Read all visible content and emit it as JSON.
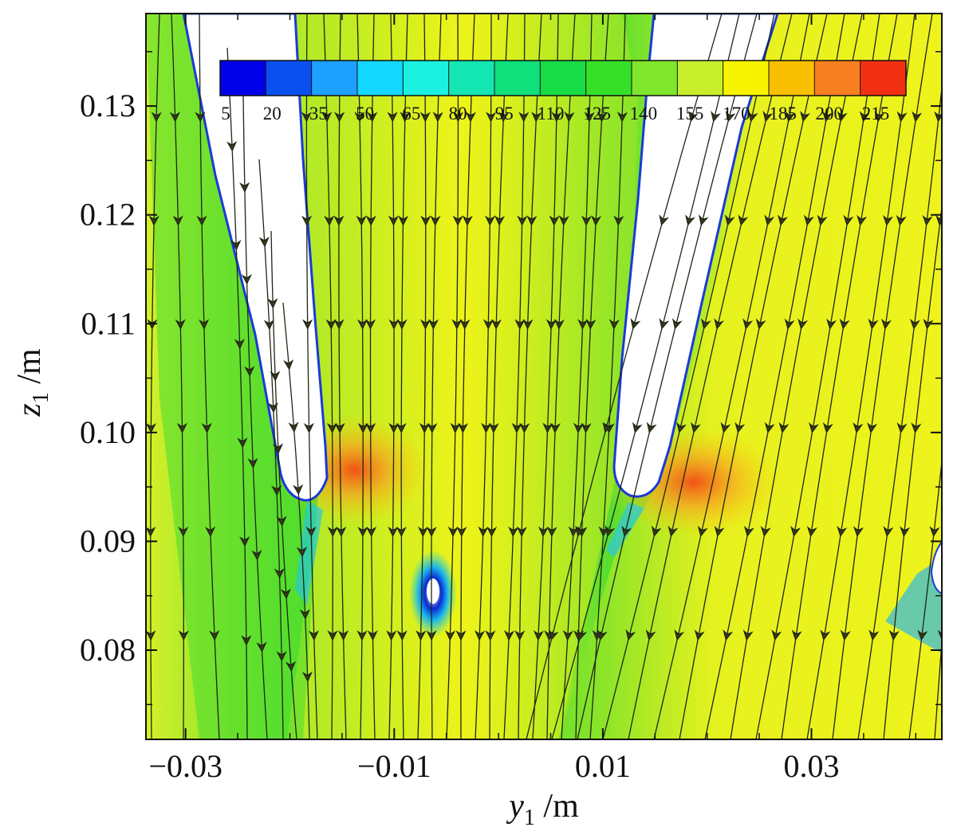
{
  "chart_data": {
    "type": "contour",
    "xlabel": {
      "symbol": "y",
      "sub": "1",
      "unit": " /m"
    },
    "ylabel": {
      "symbol": "z",
      "sub": "1",
      "unit": " /m"
    },
    "xlim": [
      -0.0338,
      0.0425
    ],
    "ylim": [
      0.0718,
      0.1385
    ],
    "x_ticks": [
      -0.03,
      -0.01,
      0.01,
      0.03
    ],
    "x_tick_labels": [
      "−0.03",
      "−0.01",
      "0.01",
      "0.03"
    ],
    "y_ticks": [
      0.08,
      0.09,
      0.1,
      0.11,
      0.12,
      0.13
    ],
    "y_tick_labels": [
      "0.08",
      "0.09",
      "0.10",
      "0.11",
      "0.12",
      "0.13"
    ],
    "colorbar": {
      "levels": [
        5,
        20,
        35,
        50,
        65,
        80,
        95,
        110,
        125,
        140,
        155,
        170,
        185,
        200,
        215
      ],
      "labels": [
        "5",
        "20",
        "35",
        "50",
        "65",
        "80",
        "95",
        "110",
        "125",
        "140",
        "155",
        "170",
        "185",
        "200",
        "215"
      ],
      "colors": [
        "#0000e6",
        "#0a50f0",
        "#1ea0ff",
        "#14d8ff",
        "#1cf0e0",
        "#14e6b4",
        "#10e07c",
        "#18dc46",
        "#36e028",
        "#80e62c",
        "#c8ee2c",
        "#f8f400",
        "#f8c000",
        "#f88020",
        "#f03010"
      ]
    },
    "blades": [
      {
        "name": "left-blade",
        "tip": [
          -0.0148,
          0.0955
        ]
      },
      {
        "name": "right-blade",
        "tip": [
          0.0146,
          0.0955
        ]
      }
    ],
    "vortex_core": [
      -0.0045,
      0.0855
    ],
    "high_speed_zones": [
      {
        "center": [
          -0.0115,
          0.0963
        ],
        "level": 195
      },
      {
        "center": [
          0.0195,
          0.0955
        ],
        "level": 200
      }
    ]
  }
}
